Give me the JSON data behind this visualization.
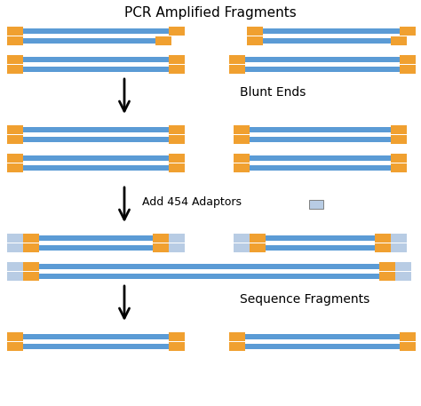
{
  "title": "PCR Amplified Fragments",
  "bg_color": "#ffffff",
  "blue_color": "#5b9bd5",
  "orange_color": "#f0a030",
  "light_blue_color": "#b8cce4",
  "label_blunt": "Blunt Ends",
  "label_adaptor": "Add 454 Adaptors",
  "label_sequence": "Sequence Fragments",
  "fig_width": 4.74,
  "fig_height": 4.57,
  "dpi": 100
}
